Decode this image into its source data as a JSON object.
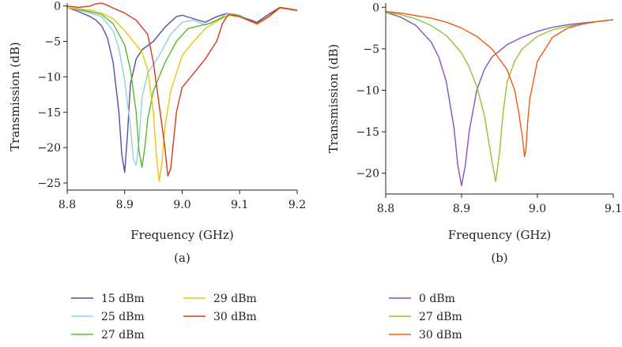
{
  "chart_data": [
    {
      "type": "line",
      "panel_label": "(a)",
      "xlabel": "Frequency (GHz)",
      "ylabel": "Transmission (dB)",
      "xlim": [
        8.8,
        9.2
      ],
      "ylim": [
        -26,
        0.4
      ],
      "xticks": [
        8.8,
        8.9,
        9.0,
        9.1,
        9.2
      ],
      "xtick_labels": [
        "8.8",
        "8.9",
        "9.0",
        "9.1",
        "9.2"
      ],
      "yticks": [
        0,
        -5,
        -10,
        -15,
        -20,
        -25
      ],
      "ytick_labels": [
        "0",
        "−5",
        "−10",
        "−15",
        "−20",
        "−25"
      ],
      "grid": false,
      "legend_position": "below",
      "series": [
        {
          "name": "15 dBm",
          "color": "#5b4aa8",
          "x": [
            8.8,
            8.82,
            8.84,
            8.85,
            8.86,
            8.87,
            8.88,
            8.89,
            8.895,
            8.9,
            8.905,
            8.91,
            8.92,
            8.93,
            8.95,
            8.97,
            8.99,
            9.0,
            9.02,
            9.04,
            9.06,
            9.08,
            9.1,
            9.13,
            9.15,
            9.17,
            9.2
          ],
          "y": [
            -0.2,
            -0.8,
            -1.5,
            -2.0,
            -2.8,
            -4.5,
            -8.0,
            -15.0,
            -21.0,
            -23.5,
            -18.0,
            -11.0,
            -7.5,
            -6.2,
            -5.0,
            -3.0,
            -1.5,
            -1.3,
            -1.8,
            -2.3,
            -1.5,
            -1.0,
            -1.4,
            -2.3,
            -1.2,
            -0.2,
            -0.6
          ]
        },
        {
          "name": "25 dBm",
          "color": "#8fd0ea",
          "x": [
            8.8,
            8.82,
            8.84,
            8.86,
            8.88,
            8.89,
            8.9,
            8.91,
            8.915,
            8.92,
            8.925,
            8.93,
            8.94,
            8.96,
            8.98,
            9.0,
            9.02,
            9.04,
            9.06,
            9.08,
            9.1,
            9.13,
            9.15,
            9.17,
            9.2
          ],
          "y": [
            -0.2,
            -0.6,
            -1.0,
            -1.5,
            -3.5,
            -6.0,
            -10.5,
            -17.0,
            -21.5,
            -22.5,
            -19.0,
            -13.0,
            -9.5,
            -7.0,
            -4.0,
            -2.3,
            -2.0,
            -2.7,
            -2.0,
            -1.0,
            -1.3,
            -2.6,
            -1.6,
            -0.3,
            -0.7
          ]
        },
        {
          "name": "27 dBm",
          "color": "#58b82e",
          "x": [
            8.8,
            8.82,
            8.84,
            8.86,
            8.88,
            8.9,
            8.91,
            8.92,
            8.925,
            8.93,
            8.935,
            8.94,
            8.95,
            8.97,
            8.99,
            9.01,
            9.03,
            9.05,
            9.07,
            9.09,
            9.1,
            9.13,
            9.15,
            9.17,
            9.2
          ],
          "y": [
            -0.2,
            -0.5,
            -0.8,
            -1.2,
            -2.5,
            -5.5,
            -9.0,
            -15.0,
            -20.5,
            -22.8,
            -20.0,
            -16.0,
            -12.0,
            -8.0,
            -5.0,
            -3.2,
            -2.8,
            -2.4,
            -1.6,
            -1.2,
            -1.4,
            -2.6,
            -1.6,
            -0.3,
            -0.6
          ]
        },
        {
          "name": "29 dBm",
          "color": "#f2c20a",
          "x": [
            8.8,
            8.82,
            8.84,
            8.86,
            8.88,
            8.9,
            8.92,
            8.93,
            8.94,
            8.95,
            8.955,
            8.96,
            8.965,
            8.97,
            8.98,
            9.0,
            9.02,
            9.04,
            9.06,
            9.08,
            9.1,
            9.13,
            9.15,
            9.17,
            9.2
          ],
          "y": [
            -0.2,
            -0.4,
            -0.6,
            -1.0,
            -1.8,
            -3.5,
            -5.5,
            -6.5,
            -9.0,
            -15.0,
            -21.0,
            -24.8,
            -22.0,
            -17.0,
            -12.0,
            -7.0,
            -5.0,
            -3.2,
            -2.2,
            -1.3,
            -1.5,
            -2.6,
            -1.6,
            -0.3,
            -0.6
          ]
        },
        {
          "name": "30 dBm",
          "color": "#d43a1c",
          "x": [
            8.8,
            8.82,
            8.84,
            8.85,
            8.86,
            8.87,
            8.88,
            8.9,
            8.92,
            8.94,
            8.95,
            8.96,
            8.97,
            8.975,
            8.98,
            8.985,
            8.99,
            9.0,
            9.02,
            9.04,
            9.06,
            9.07,
            9.08,
            9.1,
            9.13,
            9.15,
            9.17,
            9.2
          ],
          "y": [
            0.0,
            -0.2,
            0.0,
            0.3,
            0.4,
            0.1,
            -0.3,
            -1.0,
            -2.0,
            -4.0,
            -8.0,
            -14.0,
            -20.0,
            -24.0,
            -23.0,
            -19.0,
            -15.0,
            -11.5,
            -9.5,
            -7.5,
            -5.0,
            -2.5,
            -1.2,
            -1.5,
            -2.5,
            -1.5,
            -0.2,
            -0.6
          ]
        }
      ]
    },
    {
      "type": "line",
      "panel_label": "(b)",
      "xlabel": "Frequency (GHz)",
      "ylabel": "Transmission (dB)",
      "xlim": [
        8.8,
        9.1
      ],
      "ylim": [
        -22.5,
        0.5
      ],
      "xticks": [
        8.8,
        8.9,
        9.0,
        9.1
      ],
      "xtick_labels": [
        "8.8",
        "8.9",
        "9.0",
        "9.1"
      ],
      "yticks": [
        0,
        -5,
        -10,
        -15,
        -20
      ],
      "ytick_labels": [
        "0",
        "−5",
        "−10",
        "−15",
        "−20"
      ],
      "grid": false,
      "legend_position": "below",
      "series": [
        {
          "name": "0 dBm",
          "color": "#8a4fc0",
          "x": [
            8.8,
            8.82,
            8.84,
            8.86,
            8.87,
            8.88,
            8.89,
            8.895,
            8.9,
            8.905,
            8.91,
            8.92,
            8.93,
            8.94,
            8.96,
            8.98,
            9.0,
            9.02,
            9.04,
            9.06,
            9.08,
            9.1
          ],
          "y": [
            -0.6,
            -1.2,
            -2.2,
            -4.2,
            -6.0,
            -9.0,
            -14.5,
            -19.0,
            -21.5,
            -19.0,
            -15.0,
            -10.0,
            -7.5,
            -6.0,
            -4.5,
            -3.6,
            -2.9,
            -2.4,
            -2.1,
            -1.9,
            -1.7,
            -1.5
          ]
        },
        {
          "name": "27 dBm",
          "color": "#8cc832",
          "x": [
            8.8,
            8.82,
            8.84,
            8.86,
            8.88,
            8.9,
            8.91,
            8.92,
            8.93,
            8.94,
            8.945,
            8.95,
            8.955,
            8.96,
            8.97,
            8.98,
            9.0,
            9.02,
            9.04,
            9.06,
            9.08,
            9.1
          ],
          "y": [
            -0.6,
            -0.9,
            -1.4,
            -2.2,
            -3.4,
            -5.5,
            -7.2,
            -9.5,
            -13.0,
            -18.5,
            -21.0,
            -17.5,
            -12.5,
            -9.0,
            -6.5,
            -5.0,
            -3.5,
            -2.7,
            -2.3,
            -2.0,
            -1.7,
            -1.5
          ]
        },
        {
          "name": "30 dBm",
          "color": "#ee5a14",
          "x": [
            8.8,
            8.82,
            8.84,
            8.86,
            8.88,
            8.9,
            8.92,
            8.94,
            8.96,
            8.97,
            8.975,
            8.98,
            8.983,
            8.985,
            8.987,
            8.99,
            9.0,
            9.02,
            9.04,
            9.06,
            9.08,
            9.1
          ],
          "y": [
            -0.5,
            -0.7,
            -1.0,
            -1.3,
            -1.8,
            -2.5,
            -3.5,
            -5.0,
            -7.5,
            -10.0,
            -12.5,
            -15.5,
            -18.0,
            -17.0,
            -14.0,
            -11.0,
            -6.5,
            -3.6,
            -2.5,
            -2.0,
            -1.7,
            -1.5
          ]
        }
      ]
    }
  ]
}
